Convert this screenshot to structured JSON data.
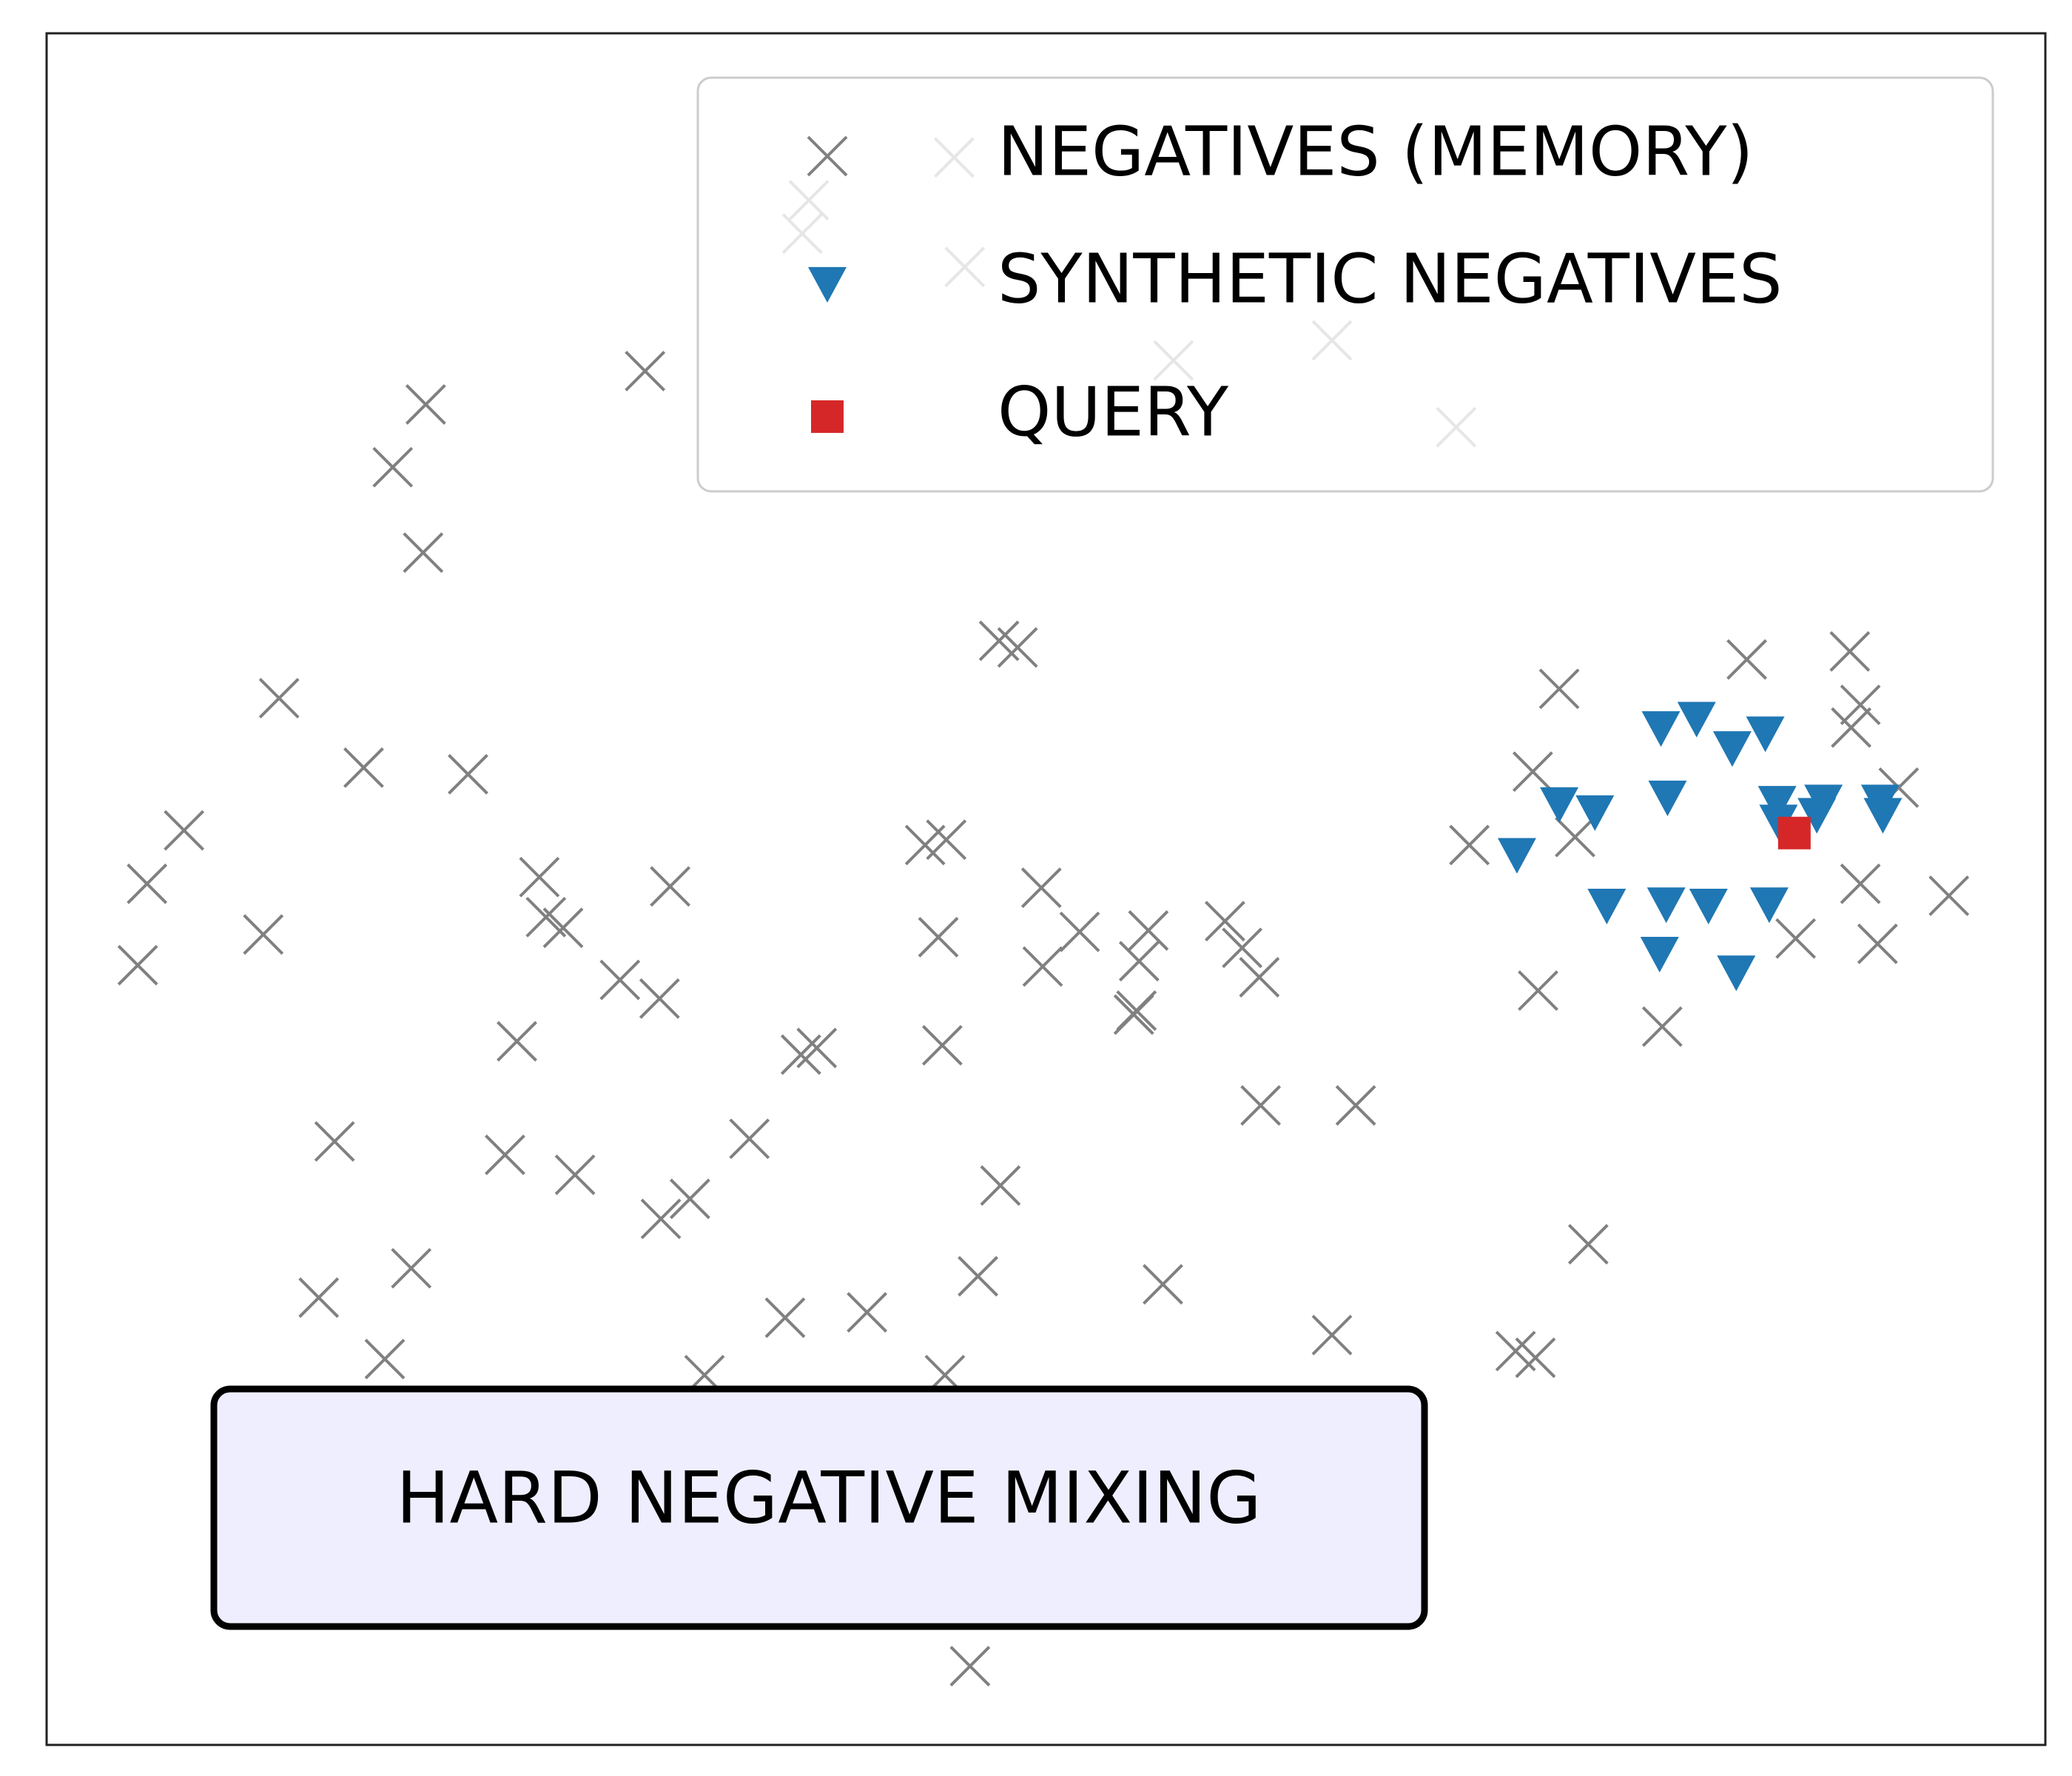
{
  "chart_data": {
    "type": "scatter",
    "annotation": "HARD NEGATIVE MIXING",
    "xlim": [
      0,
      1513
    ],
    "ylim": [
      0,
      1282
    ],
    "legend": "upper right",
    "series": [
      {
        "name": "NEGATIVES (MEMORY)",
        "color": "#808080",
        "marker": "x",
        "x": [
          453,
          287,
          262,
          285,
          721,
          735,
          176,
          240,
          319,
          104,
          76,
          164,
          69,
          373,
          378,
          391,
          472,
          434,
          464,
          356,
          665,
          681,
          753,
          675,
          782,
          754,
          834,
          827,
          892,
          905,
          918,
          823,
          825,
          571,
          583,
          678,
          919,
          991,
          218,
          347,
          400,
          532,
          487,
          465,
          722,
          276,
          206,
          559,
          621,
          705,
          845,
          973,
          1112,
          1127,
          1167,
          256,
          498,
          680,
          699,
          1145,
          1287,
          1365,
          1373,
          1366,
          1125,
          1402,
          1077,
          1157,
          1373,
          1440,
          1324,
          1386,
          1129,
          1223,
          687,
          577,
          572,
          695,
          853,
          973,
          1067
        ],
        "y": [
          1029,
          1004,
          957,
          893,
          827,
          822,
          784,
          732,
          727,
          685,
          645,
          607,
          584,
          650,
          620,
          612,
          643,
          573,
          559,
          527,
          674,
          678,
          642,
          605,
          609,
          583,
          610,
          587,
          617,
          597,
          575,
          547,
          550,
          517,
          522,
          524,
          479,
          479,
          452,
          442,
          427,
          454,
          409,
          394,
          419,
          357,
          335,
          320,
          324,
          351,
          345,
          307,
          295,
          290,
          375,
          289,
          277,
          277,
          59,
          791,
          813,
          819,
          779,
          762,
          729,
          717,
          674,
          680,
          645,
          636,
          604,
          600,
          565,
          538,
          1189,
          1157,
          1132,
          1107,
          1037,
          1052,
          987
        ]
      },
      {
        "name": "SYNTHETIC NEGATIVES",
        "color": "#1f77b4",
        "marker": "v",
        "x": [
          1222,
          1249,
          1276,
          1301,
          1145,
          1172,
          1227,
          1310,
          1345,
          1388,
          1390,
          1113,
          1181,
          1226,
          1258,
          1304,
          1221,
          1279,
          1311,
          1340
        ],
        "y": [
          762,
          769,
          747,
          758,
          705,
          699,
          710,
          706,
          707,
          707,
          697,
          667,
          629,
          630,
          629,
          630,
          593,
          579,
          692,
          697
        ]
      },
      {
        "name": "QUERY",
        "color": "#d62728",
        "marker": "s",
        "x": [
          1323
        ],
        "y": [
          683
        ]
      }
    ]
  }
}
